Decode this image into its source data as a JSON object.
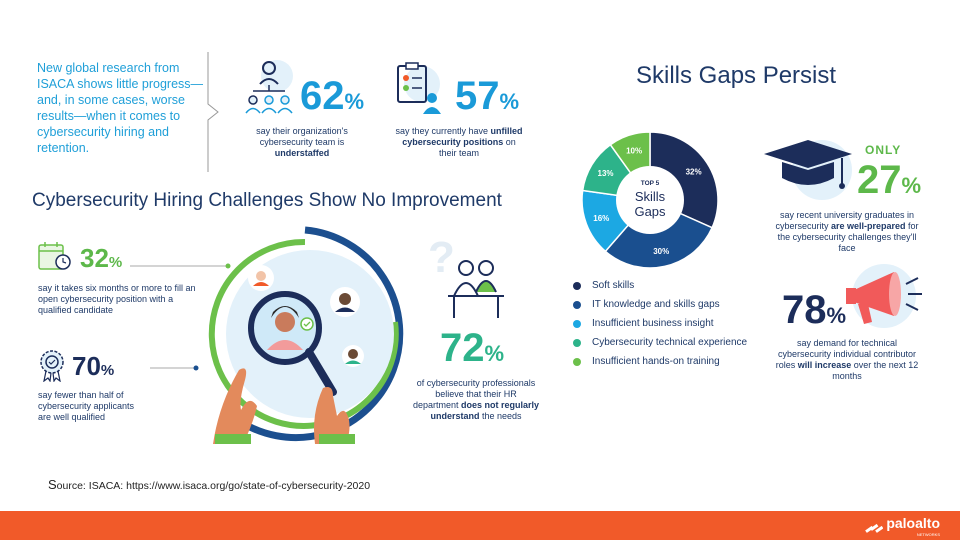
{
  "intro": "New global research from ISACA shows little progress—and, in some cases, worse results—when it comes to cybersecurity hiring and retention.",
  "stat62": {
    "value": "62",
    "pct": "%",
    "cap1": "say their organization's cybersecurity team is ",
    "cap_bold": "understaffed"
  },
  "stat57": {
    "value": "57",
    "pct": "%",
    "cap1": "say they currently have ",
    "cap_bold": "unfilled cybersecurity positions",
    "cap2": " on their team"
  },
  "hiring_title": "Cybersecurity Hiring Challenges Show No Improvement",
  "stat32": {
    "value": "32",
    "pct": "%",
    "caption": "say it takes six months or more to fill an open cybersecurity position with a qualified candidate"
  },
  "stat70": {
    "value": "70",
    "pct": "%",
    "caption": "say fewer than half of cybersecurity applicants are well qualified"
  },
  "stat72": {
    "value": "72",
    "pct": "%",
    "cap1": "of cybersecurity professionals believe that their HR department ",
    "cap_bold": "does not regularly understand",
    "cap2": " the needs"
  },
  "skills_title": "Skills Gaps Persist",
  "donut_center": {
    "top": "TOP 5",
    "line1": "Skills",
    "line2": "Gaps"
  },
  "stat27": {
    "only": "ONLY",
    "value": "27",
    "pct": "%",
    "cap1": "say recent university graduates in cybersecurity ",
    "cap_bold": "are well-prepared",
    "cap2": " for the cybersecurity challenges they'll face"
  },
  "stat78": {
    "value": "78",
    "pct": "%",
    "cap1": "say demand for technical cybersecurity individual contributor roles ",
    "cap_bold": "will increase",
    "cap2": " over the next 12 months"
  },
  "source": {
    "s": "S",
    "rest": "ource: ISACA: https://www.isaca.org/go/state-of-cybersecurity-2020"
  },
  "logo": {
    "name": "paloalto",
    "sub": "NETWORKS"
  },
  "colors": {
    "navy": "#1c2d5a",
    "blue_dark": "#1a4f8f",
    "blue_light": "#1ca8e3",
    "teal": "#2db38a",
    "green": "#6cc04a",
    "accent_orange": "#f15a29"
  },
  "chart_data": {
    "type": "pie",
    "categories": [
      "Soft skills",
      "IT knowledge and skills gaps",
      "Insufficient business insight",
      "Cybersecurity technical experience",
      "Insufficient hands-on training"
    ],
    "values": [
      32,
      30,
      16,
      13,
      10
    ],
    "labels": [
      "32%",
      "30%",
      "16%",
      "13%",
      "10%"
    ],
    "colors": [
      "#1c2d5a",
      "#1a4f8f",
      "#1ca8e3",
      "#2db38a",
      "#6cc04a"
    ],
    "legend_placement": "bottom"
  }
}
